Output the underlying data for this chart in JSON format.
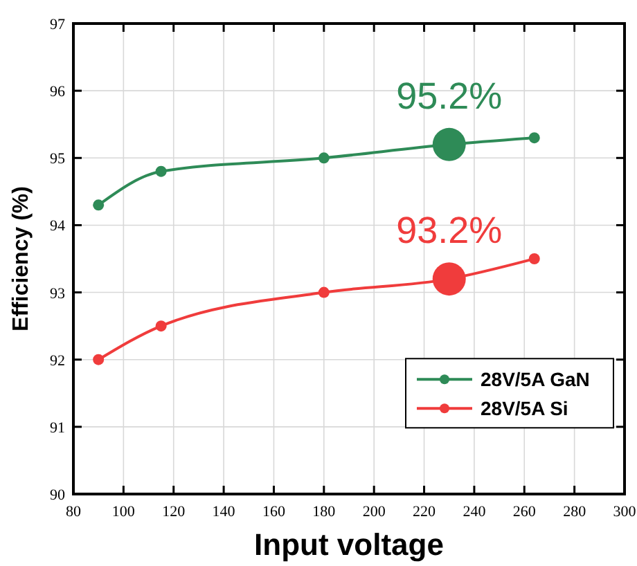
{
  "chart_data": {
    "type": "line",
    "xlabel": "Input voltage",
    "ylabel": "Efficiency (%)",
    "x": [
      90,
      115,
      180,
      230,
      264
    ],
    "series": [
      {
        "name": "28V/5A GaN",
        "color": "#2e8b57",
        "values": [
          94.3,
          94.8,
          95.0,
          95.2,
          95.3
        ]
      },
      {
        "name": "28V/5A Si",
        "color": "#f03c3c",
        "values": [
          92.0,
          92.5,
          93.0,
          93.2,
          93.5
        ]
      }
    ],
    "xlim": [
      80,
      300
    ],
    "xticks": [
      80,
      100,
      120,
      140,
      160,
      180,
      200,
      220,
      240,
      260,
      280,
      300
    ],
    "ylim": [
      90,
      97
    ],
    "yticks": [
      90,
      91,
      92,
      93,
      94,
      95,
      96,
      97
    ],
    "annotations": [
      {
        "text": "95.2%",
        "x": 230,
        "y": 95.2
      },
      {
        "text": "93.2%",
        "x": 230,
        "y": 93.2
      }
    ],
    "grid": true,
    "legend": "bottom right",
    "marker": "circle",
    "line_style": "solid"
  }
}
